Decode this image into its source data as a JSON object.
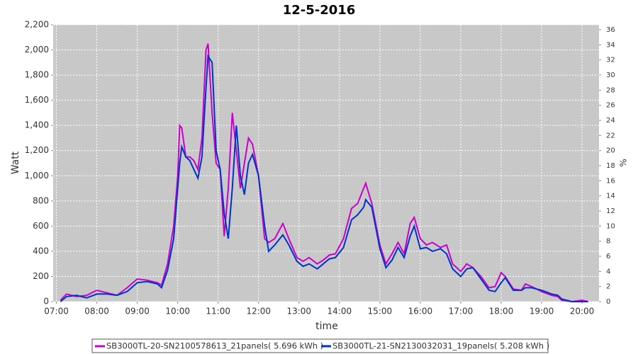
{
  "chart_data": {
    "type": "line",
    "title": "12-5-2016",
    "xlabel": "time",
    "ylabel": "Watt",
    "y2label": "%",
    "x": [
      7.1,
      7.25,
      7.5,
      7.75,
      8.0,
      8.25,
      8.5,
      8.75,
      9.0,
      9.25,
      9.5,
      9.6,
      9.75,
      9.9,
      10.0,
      10.05,
      10.1,
      10.2,
      10.3,
      10.4,
      10.5,
      10.6,
      10.7,
      10.75,
      10.85,
      10.95,
      11.05,
      11.15,
      11.25,
      11.35,
      11.45,
      11.55,
      11.65,
      11.75,
      11.85,
      12.0,
      12.15,
      12.25,
      12.4,
      12.6,
      12.75,
      12.95,
      13.1,
      13.25,
      13.45,
      13.6,
      13.75,
      13.9,
      14.1,
      14.3,
      14.45,
      14.6,
      14.65,
      14.8,
      15.0,
      15.15,
      15.3,
      15.45,
      15.6,
      15.75,
      15.85,
      16.0,
      16.15,
      16.3,
      16.5,
      16.65,
      16.8,
      17.0,
      17.15,
      17.3,
      17.5,
      17.7,
      17.85,
      18.0,
      18.1,
      18.3,
      18.5,
      18.6,
      18.75,
      19.0,
      19.25,
      19.4,
      19.5,
      19.75,
      20.0,
      20.15
    ],
    "series": [
      {
        "name": "SB3000TL-20-SN2100578613_21panels( 5.696 kWh )",
        "color": "#cc00cc",
        "values": [
          10,
          60,
          40,
          50,
          90,
          70,
          50,
          110,
          180,
          170,
          150,
          130,
          300,
          600,
          1000,
          1400,
          1380,
          1150,
          1150,
          1120,
          1050,
          1300,
          2000,
          2050,
          1500,
          1100,
          1050,
          520,
          900,
          1500,
          1200,
          900,
          1100,
          1300,
          1250,
          1000,
          500,
          470,
          500,
          620,
          500,
          350,
          320,
          350,
          300,
          330,
          370,
          380,
          500,
          740,
          780,
          900,
          940,
          780,
          450,
          300,
          380,
          470,
          380,
          620,
          670,
          500,
          450,
          470,
          430,
          450,
          300,
          240,
          300,
          270,
          200,
          110,
          120,
          230,
          200,
          100,
          90,
          140,
          120,
          80,
          50,
          40,
          10,
          0,
          10,
          0
        ]
      },
      {
        "name": "SB3000TL-21-SN2130032031_19panels( 5.208 kWh )",
        "color": "#0033cc",
        "values": [
          0,
          40,
          50,
          30,
          60,
          60,
          50,
          80,
          150,
          160,
          140,
          110,
          250,
          500,
          900,
          1100,
          1230,
          1150,
          1120,
          1050,
          980,
          1150,
          1700,
          1950,
          1900,
          1200,
          1050,
          700,
          500,
          900,
          1400,
          1000,
          850,
          1100,
          1170,
          1000,
          600,
          400,
          450,
          530,
          450,
          320,
          280,
          300,
          260,
          300,
          340,
          350,
          430,
          650,
          690,
          750,
          810,
          750,
          420,
          270,
          330,
          430,
          350,
          520,
          600,
          420,
          430,
          400,
          420,
          380,
          260,
          200,
          260,
          270,
          180,
          90,
          80,
          150,
          190,
          90,
          90,
          110,
          110,
          90,
          60,
          50,
          20,
          0,
          0,
          0
        ]
      }
    ],
    "xlim": [
      6.92,
      20.42
    ],
    "xticks": [
      {
        "value": 7,
        "label": "07:00"
      },
      {
        "value": 8,
        "label": "08:00"
      },
      {
        "value": 9,
        "label": "09:00"
      },
      {
        "value": 10,
        "label": "10:00"
      },
      {
        "value": 11,
        "label": "11:00"
      },
      {
        "value": 12,
        "label": "12:00"
      },
      {
        "value": 13,
        "label": "13:00"
      },
      {
        "value": 14,
        "label": "14:00"
      },
      {
        "value": 15,
        "label": "15:00"
      },
      {
        "value": 16,
        "label": "16:00"
      },
      {
        "value": 17,
        "label": "17:00"
      },
      {
        "value": 18,
        "label": "18:00"
      },
      {
        "value": 19,
        "label": "19:00"
      },
      {
        "value": 20,
        "label": "20:00"
      }
    ],
    "ylim": [
      0,
      2200
    ],
    "yticks": [
      0,
      200,
      400,
      600,
      800,
      {
        "value": 1000,
        "label": "1,000"
      },
      {
        "value": 1200,
        "label": "1,200"
      },
      {
        "value": 1400,
        "label": "1,400"
      },
      {
        "value": 1600,
        "label": "1,600"
      },
      {
        "value": 1800,
        "label": "1,800"
      },
      {
        "value": 2000,
        "label": "2,000"
      },
      {
        "value": 2200,
        "label": "2,200"
      }
    ],
    "y2lim": [
      0,
      36.66
    ],
    "y2ticks": [
      0,
      2,
      4,
      6,
      8,
      10,
      12,
      14,
      16,
      18,
      20,
      22,
      24,
      26,
      28,
      30,
      32,
      34,
      36
    ],
    "grid": true
  }
}
